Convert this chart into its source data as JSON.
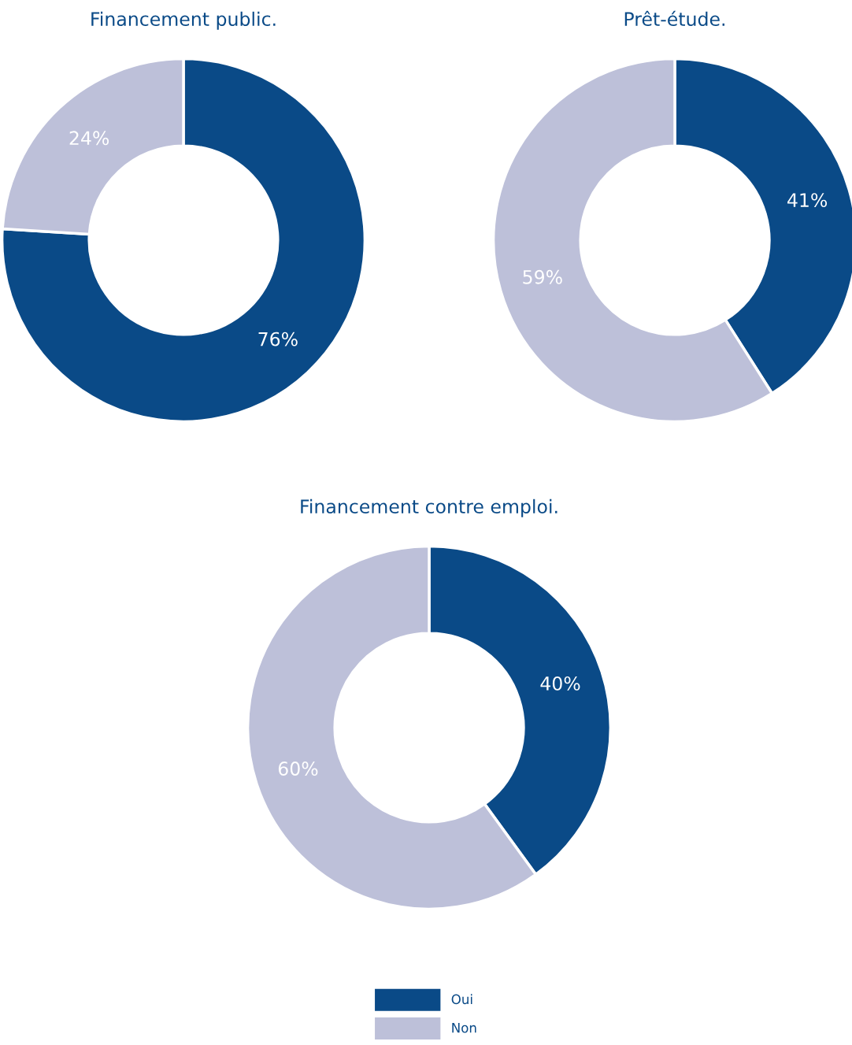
{
  "chart_data": [
    {
      "type": "donut",
      "title": "Financement public.",
      "categories": [
        "Oui",
        "Non"
      ],
      "values": [
        76,
        24
      ],
      "value_labels": [
        "76%",
        "24%"
      ],
      "colors": [
        "#0a4a87",
        "#bdc0d9"
      ],
      "legend": "bottom"
    },
    {
      "type": "donut",
      "title": "Prêt-étude.",
      "categories": [
        null,
        null
      ],
      "values": [
        41,
        59
      ],
      "value_labels": [
        "41%",
        "59%"
      ],
      "colors": [
        "#0a4a87",
        "#bdc0d9"
      ]
    },
    {
      "type": "donut",
      "title": "Financement contre emploi.",
      "categories": [
        null,
        null
      ],
      "values": [
        40,
        60
      ],
      "value_labels": [
        "40%",
        "60%"
      ],
      "colors": [
        "#0a4a87",
        "#bdc0d9"
      ]
    }
  ]
}
